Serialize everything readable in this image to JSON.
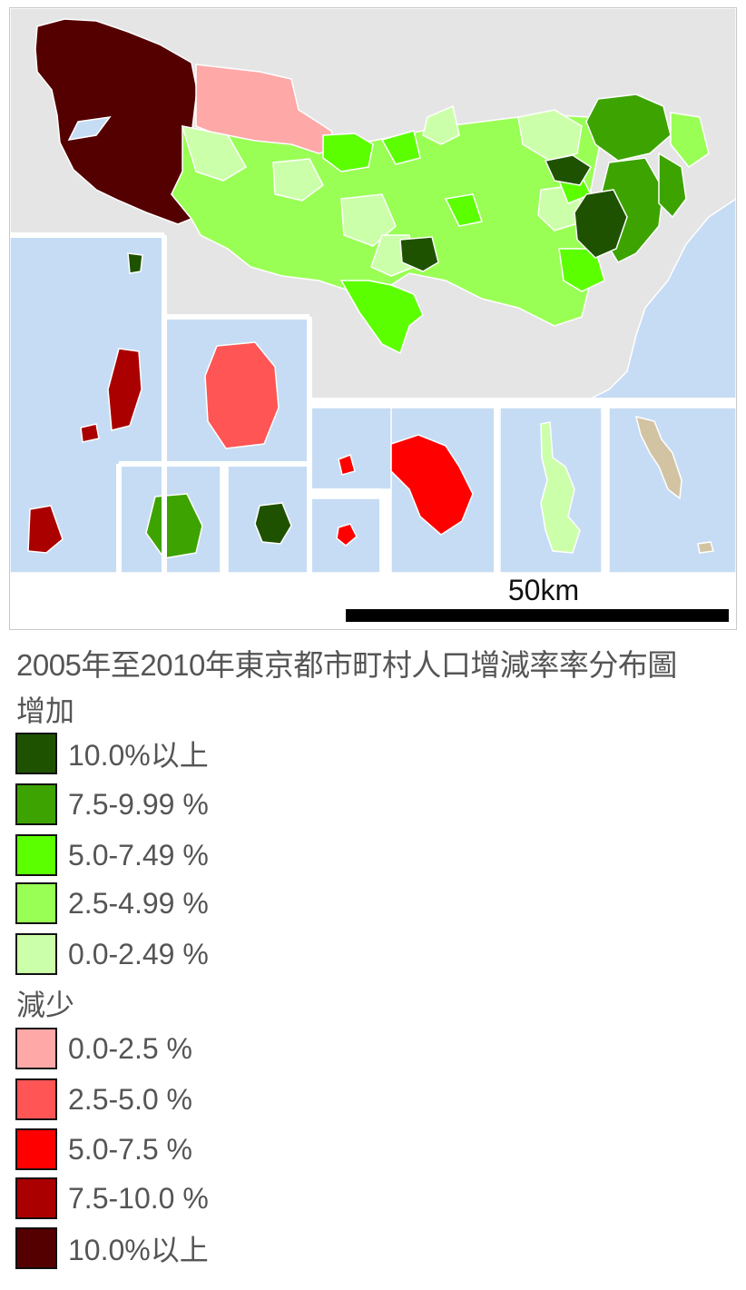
{
  "map": {
    "scale_bar_label": "50km",
    "colors": {
      "land_outside": "#e5e5e5",
      "sea": "#c6dcf4",
      "no_data": "#d2c3a3",
      "border": "#ffffff"
    }
  },
  "title": "2005年至2010年東京都市町村人口增減率率分布圖",
  "legend": {
    "increase_heading": "增加",
    "increase": [
      {
        "label": "10.0%以上",
        "color": "#1f5200"
      },
      {
        "label": "7.5-9.99 %",
        "color": "#3da300"
      },
      {
        "label": "5.0-7.49 %",
        "color": "#5cff00"
      },
      {
        "label": "2.5-4.99 %",
        "color": "#99ff55"
      },
      {
        "label": "0.0-2.49 %",
        "color": "#ccffaa"
      }
    ],
    "decrease_heading": "減少",
    "decrease": [
      {
        "label": "0.0-2.5 %",
        "color": "#ffa8a8"
      },
      {
        "label": "2.5-5.0 %",
        "color": "#ff5555"
      },
      {
        "label": "5.0-7.5 %",
        "color": "#ff0000"
      },
      {
        "label": "7.5-10.0 %",
        "color": "#aa0000"
      },
      {
        "label": "10.0%以上",
        "color": "#550000"
      }
    ]
  }
}
